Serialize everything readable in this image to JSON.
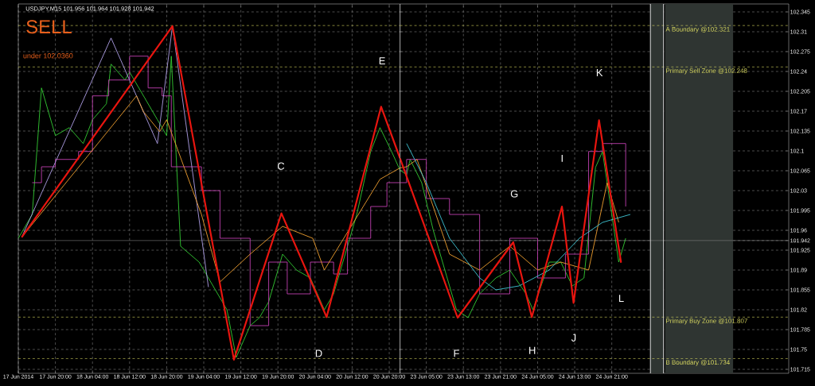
{
  "chart_data": [
    {
      "type": "line",
      "title": "USDJPY,M15  101.956 101.964 101.928 101.942",
      "subtitle": "SELL",
      "annotations": [
        "under 102.0360",
        "C",
        "D",
        "E"
      ],
      "series": [
        {
          "color": "#33cc33",
          "x": [
            "2014-06-17T12:00",
            "2014-06-17T15:00",
            "2014-06-17T17:00",
            "2014-06-17T20:00",
            "2014-06-17T23:00",
            "2014-06-18T02:00",
            "2014-06-18T04:00",
            "2014-06-18T07:00",
            "2014-06-18T08:00",
            "2014-06-18T11:00",
            "2014-06-18T12:00",
            "2014-06-18T15:00",
            "2014-06-18T18:00",
            "2014-06-18T20:00",
            "2014-06-18T21:00",
            "2014-06-18T22:00",
            "2014-06-18T23:00",
            "2014-06-19T03:00",
            "2014-06-19T05:00",
            "2014-06-19T09:00",
            "2014-06-19T11:00",
            "2014-06-19T14:00",
            "2014-06-19T16:00",
            "2014-06-19T18:00",
            "2014-06-19T21:00",
            "2014-06-20T00:00",
            "2014-06-20T03:00",
            "2014-06-20T06:00",
            "2014-06-20T08:00",
            "2014-06-20T10:00",
            "2014-06-20T13:00",
            "2014-06-20T16:00",
            "2014-06-20T18:00",
            "2014-06-20T20:30",
            "2014-06-20T22:20"
          ],
          "values": [
            101.946,
            101.988,
            102.211,
            102.127,
            102.141,
            102.113,
            102.155,
            102.183,
            102.253,
            102.225,
            102.239,
            102.197,
            102.155,
            102.127,
            102.267,
            102.099,
            101.932,
            101.904,
            101.876,
            101.82,
            101.736,
            101.792,
            101.806,
            101.834,
            101.918,
            101.89,
            101.876,
            101.82,
            101.848,
            101.904,
            101.988,
            102.099,
            102.141,
            102.099,
            102.066
          ]
        },
        {
          "color": "#c040b0",
          "type": "step",
          "x": [
            "2014-06-17T15:00",
            "2014-06-17T17:00",
            "2014-06-17T20:00",
            "2014-06-18T01:00",
            "2014-06-18T04:00",
            "2014-06-18T07:30",
            "2014-06-18T12:00",
            "2014-06-18T16:00",
            "2014-06-18T19:00",
            "2014-06-18T21:00",
            "2014-06-19T03:30",
            "2014-06-19T07:30",
            "2014-06-19T14:00",
            "2014-06-19T18:00",
            "2014-06-19T22:00",
            "2014-06-20T03:00",
            "2014-06-20T08:00",
            "2014-06-20T11:00",
            "2014-06-20T16:00",
            "2014-06-20T19:30",
            "2014-06-20T22:20"
          ],
          "values": [
            102.044,
            102.072,
            102.085,
            102.099,
            102.197,
            102.225,
            102.267,
            102.211,
            102.197,
            102.072,
            102.03,
            101.946,
            101.792,
            101.904,
            101.848,
            101.904,
            101.883,
            101.946,
            102.002,
            102.044,
            102.044
          ]
        },
        {
          "color": "#b0a0e8",
          "x": [
            "2014-06-17T12:45",
            "2014-06-18T08:00",
            "2014-06-18T18:00",
            "2014-06-18T21:15",
            "2014-06-19T05:00"
          ],
          "values": [
            101.948,
            102.299,
            102.113,
            102.32,
            101.86
          ]
        },
        {
          "color": "#f0a030",
          "x": [
            "2014-06-17T12:45",
            "2014-06-18T13:30",
            "2014-06-18T15:00",
            "2014-06-18T18:30",
            "2014-06-18T20:00",
            "2014-06-19T03:30",
            "2014-06-19T07:30",
            "2014-06-19T14:00",
            "2014-06-19T21:00",
            "2014-06-20T03:30",
            "2014-06-20T06:00",
            "2014-06-20T18:00",
            "2014-06-20T22:20"
          ],
          "values": [
            101.948,
            102.197,
            102.169,
            102.134,
            102.155,
            101.988,
            101.869,
            101.918,
            101.967,
            101.946,
            101.89,
            102.05,
            102.07
          ]
        },
        {
          "color": "#e8150f",
          "x": [
            "2014-06-17T12:45",
            "2014-06-18T21:15",
            "2014-06-19T10:30",
            "2014-06-19T20:45",
            "2014-06-20T06:30",
            "2014-06-20T18:15",
            "2014-06-20T22:20"
          ],
          "values": [
            101.948,
            102.32,
            101.732,
            101.99,
            101.807,
            102.178,
            102.087
          ]
        }
      ],
      "xlim": [
        "2014-06-17T12:00",
        "2014-06-20T22:20"
      ],
      "ylim": [
        101.708,
        102.359
      ],
      "xticks": [
        {
          "value": "2014-06-17T12:00",
          "label": "17 Jun 2014"
        },
        {
          "value": "2014-06-17T20:00",
          "label": "17 Jun 20:00"
        },
        {
          "value": "2014-06-18T04:00",
          "label": "18 Jun 04:00"
        },
        {
          "value": "2014-06-18T12:00",
          "label": "18 Jun 12:00"
        },
        {
          "value": "2014-06-18T20:00",
          "label": "18 Jun 20:00"
        },
        {
          "value": "2014-06-19T04:00",
          "label": "19 Jun 04:00"
        },
        {
          "value": "2014-06-19T12:00",
          "label": "19 Jun 12:00"
        },
        {
          "value": "2014-06-19T20:00",
          "label": "19 Jun 20:00"
        },
        {
          "value": "2014-06-20T04:00",
          "label": "20 Jun 04:00"
        },
        {
          "value": "2014-06-20T12:00",
          "label": "20 Jun 12:00"
        },
        {
          "value": "2014-06-20T20:00",
          "label": "20 Jun 20:00"
        }
      ],
      "yticks": [
        102.345,
        102.31,
        102.275,
        102.24,
        102.205,
        102.17,
        102.135,
        102.1,
        102.065,
        102.03,
        101.995,
        101.96,
        101.925,
        101.89,
        101.855,
        101.82,
        101.785,
        101.75,
        101.715
      ],
      "tick_labels": "x",
      "ref_lines": [
        {
          "axis": "y",
          "value": 102.321,
          "color": "#d8d860",
          "line_style": "dashed"
        },
        {
          "axis": "y",
          "value": 102.248,
          "color": "#d8d860",
          "line_style": "dashed"
        },
        {
          "axis": "y",
          "value": 101.807,
          "color": "#d8d860",
          "line_style": "dashed"
        },
        {
          "axis": "y",
          "value": 101.734,
          "color": "#d8d860",
          "line_style": "dashed"
        },
        {
          "axis": "y",
          "value": 101.942,
          "color": "#808080",
          "line_style": "solid"
        }
      ],
      "grid": true,
      "marker": "none",
      "line_style": "solid"
    },
    {
      "type": "line",
      "annotations": [
        "F",
        "G",
        "H",
        "I",
        "J",
        "K",
        "L"
      ],
      "series": [
        {
          "color": "#33cc33",
          "x": [
            "2014-06-22T23:20",
            "2014-06-23T00:45",
            "2014-06-23T01:30",
            "2014-06-23T04:00",
            "2014-06-23T06:30",
            "2014-06-23T09:00",
            "2014-06-23T11:30",
            "2014-06-23T14:00",
            "2014-06-23T16:30",
            "2014-06-23T20:00",
            "2014-06-23T23:00",
            "2014-06-24T02:30",
            "2014-06-24T04:00",
            "2014-06-24T07:30",
            "2014-06-24T10:00",
            "2014-06-24T12:30",
            "2014-06-24T15:00",
            "2014-06-24T17:30",
            "2014-06-24T19:00",
            "2014-06-24T21:00",
            "2014-06-24T22:30",
            "2014-06-25T00:00"
          ],
          "values": [
            102.066,
            102.058,
            102.085,
            102.044,
            101.96,
            101.89,
            101.82,
            101.806,
            101.848,
            101.876,
            101.89,
            101.848,
            101.82,
            101.904,
            101.904,
            101.862,
            101.876,
            102.071,
            102.099,
            101.988,
            101.904,
            101.946
          ]
        },
        {
          "color": "#c040b0",
          "type": "step",
          "x": [
            "2014-06-22T23:20",
            "2014-06-23T00:45",
            "2014-06-23T05:00",
            "2014-06-23T10:00",
            "2014-06-23T16:30",
            "2014-06-23T23:00",
            "2014-06-24T05:00",
            "2014-06-24T11:00",
            "2014-06-24T16:00",
            "2014-06-24T19:00",
            "2014-06-25T00:00"
          ],
          "values": [
            102.044,
            102.085,
            102.016,
            101.988,
            101.848,
            101.946,
            101.876,
            101.918,
            102.099,
            102.113,
            102.002
          ]
        },
        {
          "color": "#f0a030",
          "x": [
            "2014-06-22T23:20",
            "2014-06-23T00:45",
            "2014-06-23T03:00",
            "2014-06-23T10:00",
            "2014-06-23T16:30",
            "2014-06-23T23:00",
            "2014-06-24T05:00",
            "2014-06-24T10:00",
            "2014-06-24T16:00",
            "2014-06-24T20:00",
            "2014-06-24T22:30"
          ],
          "values": [
            102.07,
            102.072,
            102.085,
            101.918,
            101.89,
            101.932,
            101.89,
            101.904,
            101.89,
            102.044,
            101.974
          ]
        },
        {
          "color": "#40c8d8",
          "x": [
            "2014-06-23T00:45",
            "2014-06-23T05:00",
            "2014-06-23T10:00",
            "2014-06-23T16:30",
            "2014-06-23T20:00",
            "2014-06-24T01:00",
            "2014-06-24T07:30",
            "2014-06-24T14:00",
            "2014-06-24T19:00",
            "2014-06-25T01:00"
          ],
          "values": [
            102.113,
            102.044,
            101.946,
            101.876,
            101.855,
            101.862,
            101.89,
            101.946,
            101.974,
            101.988
          ]
        },
        {
          "color": "#e8150f",
          "x": [
            "2014-06-22T23:20",
            "2014-06-23T11:45",
            "2014-06-23T23:45",
            "2014-06-24T03:45",
            "2014-06-24T10:15",
            "2014-06-24T12:45",
            "2014-06-24T18:15",
            "2014-06-24T23:00"
          ],
          "values": [
            102.087,
            101.806,
            101.939,
            101.807,
            102.002,
            101.832,
            102.154,
            101.903
          ]
        }
      ],
      "xlim": [
        "2014-06-22T23:20",
        "2014-06-26T11:10"
      ],
      "ylim": [
        101.708,
        102.359
      ],
      "xticks": [
        {
          "value": "2014-06-23T05:00",
          "label": "23 Jun 05:00"
        },
        {
          "value": "2014-06-23T13:00",
          "label": "23 Jun 13:00"
        },
        {
          "value": "2014-06-23T21:00",
          "label": "23 Jun 21:00"
        },
        {
          "value": "2014-06-24T05:00",
          "label": "24 Jun 05:00"
        },
        {
          "value": "2014-06-24T13:00",
          "label": "24 Jun 13:00"
        },
        {
          "value": "2014-06-24T21:00",
          "label": "24 Jun 21:00"
        }
      ],
      "yticks": [
        102.345,
        102.31,
        102.275,
        102.24,
        102.205,
        102.17,
        102.135,
        102.1,
        102.065,
        102.03,
        101.995,
        101.96,
        {
          "value": 101.942,
          "label": "101.942"
        },
        101.925,
        101.89,
        101.855,
        101.82,
        101.785,
        101.75,
        101.715
      ],
      "ref_lines": [
        {
          "axis": "y",
          "value": 102.321,
          "label": "A Boundary @102.321",
          "color": "#d8d860",
          "line_style": "dashed"
        },
        {
          "axis": "y",
          "value": 102.248,
          "label": "Primary Sell Zone @102.248",
          "color": "#d8d860",
          "line_style": "dashed"
        },
        {
          "axis": "y",
          "value": 101.807,
          "label": "Primary Buy Zone @101.807",
          "color": "#d8d860",
          "line_style": "dashed"
        },
        {
          "axis": "y",
          "value": 101.734,
          "label": "B Boundary @101.734",
          "color": "#d8d860",
          "line_style": "dashed"
        },
        {
          "axis": "y",
          "value": 101.942,
          "color": "#808080",
          "line_style": "solid"
        },
        {
          "axis": "x",
          "value": "2014-06-25T05:20",
          "color": "#e0e0e0",
          "line_style": "solid"
        },
        {
          "axis": "x",
          "value": "2014-06-25T08:10",
          "color": "#e0e0e0",
          "line_style": "solid"
        }
      ],
      "bands": [
        {
          "axis": "x",
          "from": "2014-06-25T05:20",
          "to": "2014-06-25T08:10",
          "color": "#2f3532"
        },
        {
          "axis": "x",
          "from": "2014-06-25T08:30",
          "to": "2014-06-25T23:10",
          "color": "#2f3532"
        }
      ],
      "grid": true,
      "marker": "none",
      "line_style": "solid"
    }
  ]
}
